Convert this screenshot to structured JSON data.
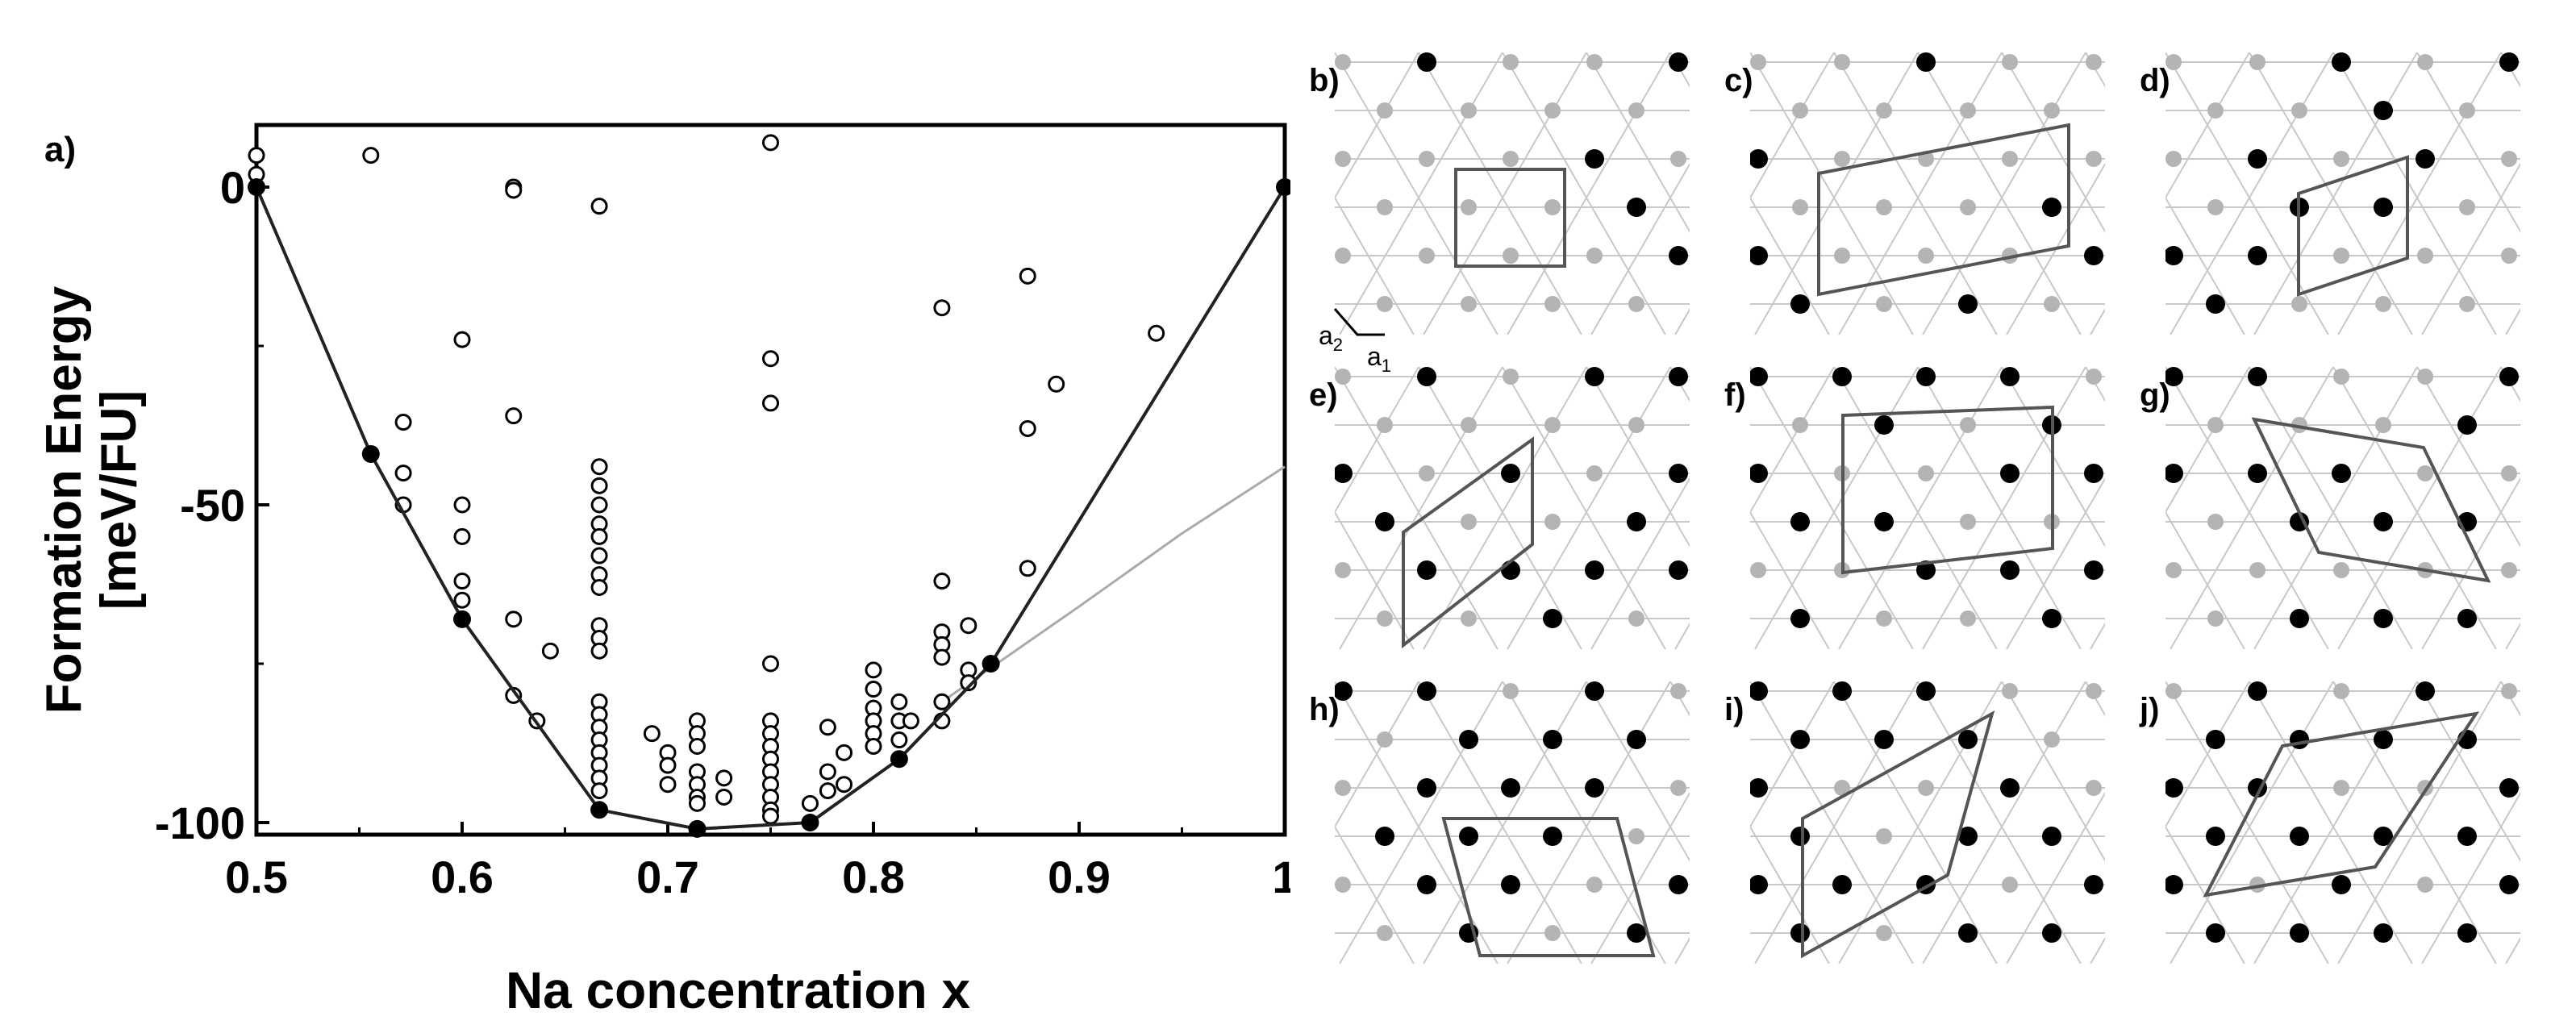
{
  "chart_data": {
    "type": "scatter",
    "panel_label": "a)",
    "xlabel": "Na concentration x",
    "ylabel_line1": "Formation Energy",
    "ylabel_line2": "[meV/FU]",
    "xlim": [
      0.5,
      1.0
    ],
    "ylim": [
      -100,
      10
    ],
    "xticks": [
      0.5,
      0.6,
      0.7,
      0.8,
      0.9,
      1.0
    ],
    "xtick_labels": [
      "0.5",
      "0.6",
      "0.7",
      "0.8",
      "0.9",
      "1"
    ],
    "yticks": [
      0,
      -50,
      -100
    ],
    "ytick_labels": [
      "0",
      "-50",
      "-100"
    ],
    "grid": false,
    "series": [
      {
        "style": "hull-ground-states",
        "points": [
          [
            0.5,
            0
          ],
          [
            0.5556,
            -42
          ],
          [
            0.6,
            -68
          ],
          [
            0.6667,
            -98
          ],
          [
            0.7143,
            -101
          ],
          [
            0.7692,
            -100
          ],
          [
            0.8125,
            -90
          ],
          [
            0.8571,
            -75
          ],
          [
            1.0,
            0
          ]
        ]
      },
      {
        "style": "reference-line",
        "points": [
          [
            0.8333,
            -81
          ],
          [
            0.9,
            -66
          ],
          [
            0.95,
            -54.5
          ],
          [
            1.0,
            -44
          ]
        ]
      },
      {
        "style": "open-circles",
        "points": [
          [
            0.5,
            5
          ],
          [
            0.5,
            2
          ],
          [
            0.5556,
            5
          ],
          [
            0.625,
            0
          ],
          [
            0.625,
            -0.5
          ],
          [
            0.6667,
            -3
          ],
          [
            0.75,
            7
          ],
          [
            0.9375,
            -23
          ],
          [
            0.6,
            -24
          ],
          [
            0.75,
            -27
          ],
          [
            0.75,
            -34
          ],
          [
            0.8333,
            -19
          ],
          [
            0.875,
            -14
          ],
          [
            0.8889,
            -31
          ],
          [
            0.875,
            -38
          ],
          [
            0.5714,
            -37
          ],
          [
            0.5714,
            -45
          ],
          [
            0.5714,
            -50
          ],
          [
            0.625,
            -36
          ],
          [
            0.6,
            -50
          ],
          [
            0.6,
            -55
          ],
          [
            0.6,
            -62
          ],
          [
            0.6,
            -65
          ],
          [
            0.625,
            -68
          ],
          [
            0.625,
            -80
          ],
          [
            0.6364,
            -84
          ],
          [
            0.6429,
            -73
          ],
          [
            0.6667,
            -44
          ],
          [
            0.6667,
            -47
          ],
          [
            0.6667,
            -50
          ],
          [
            0.6667,
            -53
          ],
          [
            0.6667,
            -55
          ],
          [
            0.6667,
            -58
          ],
          [
            0.6667,
            -61
          ],
          [
            0.6667,
            -63
          ],
          [
            0.6667,
            -69
          ],
          [
            0.6667,
            -71
          ],
          [
            0.6667,
            -73
          ],
          [
            0.6667,
            -81
          ],
          [
            0.6667,
            -83
          ],
          [
            0.6667,
            -85
          ],
          [
            0.6667,
            -87
          ],
          [
            0.6667,
            -89
          ],
          [
            0.6667,
            -91
          ],
          [
            0.6667,
            -93
          ],
          [
            0.6667,
            -95
          ],
          [
            0.6923,
            -86
          ],
          [
            0.7,
            -89
          ],
          [
            0.7,
            -91
          ],
          [
            0.7,
            -94
          ],
          [
            0.7143,
            -84
          ],
          [
            0.7143,
            -86
          ],
          [
            0.7143,
            -88
          ],
          [
            0.7143,
            -92
          ],
          [
            0.7143,
            -94
          ],
          [
            0.7143,
            -96
          ],
          [
            0.7143,
            -97
          ],
          [
            0.7273,
            -93
          ],
          [
            0.7273,
            -96
          ],
          [
            0.75,
            -75
          ],
          [
            0.75,
            -84
          ],
          [
            0.75,
            -86
          ],
          [
            0.75,
            -88
          ],
          [
            0.75,
            -90
          ],
          [
            0.75,
            -92
          ],
          [
            0.75,
            -94
          ],
          [
            0.75,
            -96
          ],
          [
            0.75,
            -98
          ],
          [
            0.75,
            -99
          ],
          [
            0.7692,
            -97
          ],
          [
            0.7778,
            -85
          ],
          [
            0.7778,
            -92
          ],
          [
            0.7778,
            -95
          ],
          [
            0.7857,
            -89
          ],
          [
            0.7857,
            -94
          ],
          [
            0.8,
            -76
          ],
          [
            0.8,
            -79
          ],
          [
            0.8,
            -82
          ],
          [
            0.8,
            -84
          ],
          [
            0.8,
            -86
          ],
          [
            0.8,
            -88
          ],
          [
            0.8125,
            -81
          ],
          [
            0.8125,
            -84
          ],
          [
            0.8125,
            -87
          ],
          [
            0.8182,
            -84
          ],
          [
            0.8333,
            -62
          ],
          [
            0.8333,
            -70
          ],
          [
            0.8333,
            -72
          ],
          [
            0.8333,
            -74
          ],
          [
            0.8333,
            -81
          ],
          [
            0.8333,
            -84
          ],
          [
            0.8462,
            -69
          ],
          [
            0.8462,
            -76
          ],
          [
            0.8462,
            -78
          ],
          [
            0.875,
            -60
          ]
        ]
      }
    ]
  },
  "panels": [
    {
      "id": "b",
      "label": "b)"
    },
    {
      "id": "c",
      "label": "c)"
    },
    {
      "id": "d",
      "label": "d)"
    },
    {
      "id": "e",
      "label": "e)"
    },
    {
      "id": "f",
      "label": "f)"
    },
    {
      "id": "g",
      "label": "g)"
    },
    {
      "id": "h",
      "label": "h)"
    },
    {
      "id": "i",
      "label": "i)"
    },
    {
      "id": "j",
      "label": "j)"
    }
  ],
  "lattice_vectors": {
    "a2": "a",
    "a2_sub": "2",
    "a1": "a",
    "a1_sub": "1"
  },
  "colors": {
    "filled_site": "#000000",
    "empty_site": "#b4b4b4",
    "lattice_line": "#c8c8c8",
    "cell_outline": "#555555",
    "hull_line": "#222222",
    "reference_line": "#aaaaaa"
  }
}
